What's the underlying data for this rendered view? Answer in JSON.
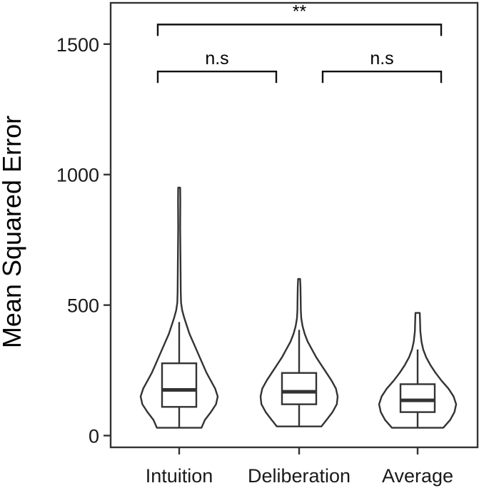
{
  "chart_data": {
    "type": "violin",
    "ylabel": "Mean Squared Error",
    "xlabel": "",
    "ylim": [
      -45,
      1658
    ],
    "yticks": [
      0,
      500,
      1000,
      1500
    ],
    "grid": false,
    "categories": [
      "Intuition",
      "Deliberation",
      "Average"
    ],
    "groups": [
      {
        "name": "Intuition",
        "box": {
          "whisker_low": 30,
          "q1": 110,
          "median": 175,
          "q3": 277,
          "whisker_high": 435
        },
        "density": [
          [
            30,
            0.26
          ],
          [
            60,
            0.3
          ],
          [
            90,
            0.37
          ],
          [
            120,
            0.43
          ],
          [
            150,
            0.45
          ],
          [
            180,
            0.42
          ],
          [
            210,
            0.37
          ],
          [
            240,
            0.32
          ],
          [
            270,
            0.28
          ],
          [
            300,
            0.24
          ],
          [
            330,
            0.2
          ],
          [
            360,
            0.16
          ],
          [
            390,
            0.12
          ],
          [
            420,
            0.09
          ],
          [
            450,
            0.06
          ],
          [
            480,
            0.035
          ],
          [
            510,
            0.022
          ],
          [
            550,
            0.018
          ],
          [
            650,
            0.016
          ],
          [
            800,
            0.012
          ],
          [
            900,
            0.013
          ],
          [
            950,
            0.012
          ]
        ]
      },
      {
        "name": "Deliberation",
        "box": {
          "whisker_low": 35,
          "q1": 120,
          "median": 168,
          "q3": 240,
          "whisker_high": 405
        },
        "density": [
          [
            35,
            0.26
          ],
          [
            60,
            0.32
          ],
          [
            90,
            0.39
          ],
          [
            120,
            0.44
          ],
          [
            150,
            0.45
          ],
          [
            180,
            0.43
          ],
          [
            210,
            0.38
          ],
          [
            240,
            0.32
          ],
          [
            270,
            0.26
          ],
          [
            300,
            0.2
          ],
          [
            330,
            0.15
          ],
          [
            360,
            0.1
          ],
          [
            390,
            0.065
          ],
          [
            420,
            0.04
          ],
          [
            450,
            0.025
          ],
          [
            480,
            0.02
          ],
          [
            520,
            0.018
          ],
          [
            570,
            0.016
          ],
          [
            600,
            0.012
          ]
        ]
      },
      {
        "name": "Average",
        "box": {
          "whisker_low": 30,
          "q1": 90,
          "median": 135,
          "q3": 197,
          "whisker_high": 330
        },
        "density": [
          [
            30,
            0.3
          ],
          [
            60,
            0.38
          ],
          [
            90,
            0.43
          ],
          [
            120,
            0.45
          ],
          [
            150,
            0.42
          ],
          [
            180,
            0.36
          ],
          [
            210,
            0.28
          ],
          [
            240,
            0.21
          ],
          [
            270,
            0.15
          ],
          [
            300,
            0.1
          ],
          [
            330,
            0.065
          ],
          [
            360,
            0.045
          ],
          [
            400,
            0.032
          ],
          [
            440,
            0.028
          ],
          [
            470,
            0.025
          ]
        ]
      }
    ],
    "comparisons": [
      {
        "groups": [
          "Intuition",
          "Deliberation"
        ],
        "label": "n.s",
        "y": 1395
      },
      {
        "groups": [
          "Deliberation",
          "Average"
        ],
        "label": "n.s",
        "y": 1395
      },
      {
        "groups": [
          "Intuition",
          "Average"
        ],
        "label": "**",
        "y": 1575
      }
    ]
  }
}
